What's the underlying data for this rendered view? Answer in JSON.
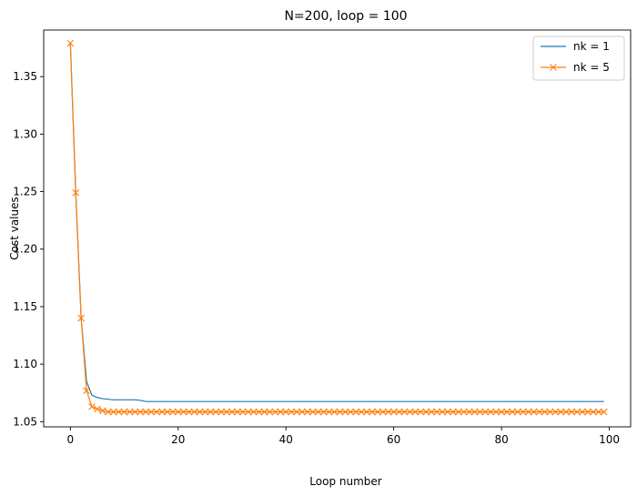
{
  "chart_data": {
    "type": "line",
    "title": "N=200, loop = 100",
    "xlabel": "Loop number",
    "ylabel": "Cost values",
    "xlim": [
      -4.95,
      103.95
    ],
    "ylim": [
      1.0455,
      1.3905
    ],
    "xticks": [
      0,
      20,
      40,
      60,
      80,
      100
    ],
    "xtick_labels": [
      "0",
      "20",
      "40",
      "60",
      "80",
      "100"
    ],
    "yticks": [
      1.05,
      1.1,
      1.15,
      1.2,
      1.25,
      1.3,
      1.35
    ],
    "ytick_labels": [
      "1.05",
      "1.10",
      "1.15",
      "1.20",
      "1.25",
      "1.30",
      "1.35"
    ],
    "grid": false,
    "legend_position": "top-right",
    "series": [
      {
        "name": "nk = 1",
        "color": "#1f77b4",
        "marker": "none",
        "head": [
          1.379,
          1.249,
          1.14,
          1.085,
          1.073,
          1.071,
          1.07,
          1.0695,
          1.069,
          1.069,
          1.069,
          1.069,
          1.069,
          1.0685
        ],
        "tail_value": 1.0675,
        "count": 100
      },
      {
        "name": "nk = 5",
        "color": "#ff7f0e",
        "marker": "x",
        "head": [
          1.379,
          1.249,
          1.14,
          1.077,
          1.063,
          1.061,
          1.0595
        ],
        "tail_value": 1.0585,
        "count": 100
      }
    ]
  }
}
